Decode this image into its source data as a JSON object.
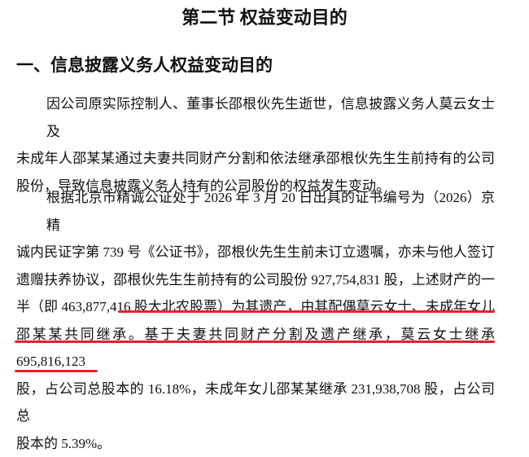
{
  "title": "第二节 权益变动目的",
  "section": {
    "heading": "一、信息披露义务人权益变动目的",
    "paragraphs": [
      [
        "因公司原实际控制人、董事长邵根伙先生逝世，信息披露义务人莫云女士及",
        "未成年人邵某某通过夫妻共同财产分割和依法继承邵根伙先生生前持有的公司",
        "股份，导致信息披露义务人持有的公司股份的权益发生变动。"
      ],
      [
        "根据北京市精诚公证处于 2026 年 3 月 20 日出具的证书编号为（2026）京精",
        "诚内民证字第 739 号《公证书》，邵根伙先生生前未订立遗嘱，亦未与他人签订",
        "遗赠扶养协议，邵根伙先生生前持有的公司股份 927,754,831 股，上述财产的一",
        "半（即 463,877,416 股大北农股票）为其遗产，由其配偶莫云女士、未成年女儿",
        "邵某某共同继承。基于夫妻共同财产分割及遗产继承，莫云女士继承 695,816,123",
        "股，占公司总股本的 16.18%，未成年女儿邵某某继承 231,938,708 股，占公司总",
        "股本的 5.39%。"
      ]
    ]
  }
}
